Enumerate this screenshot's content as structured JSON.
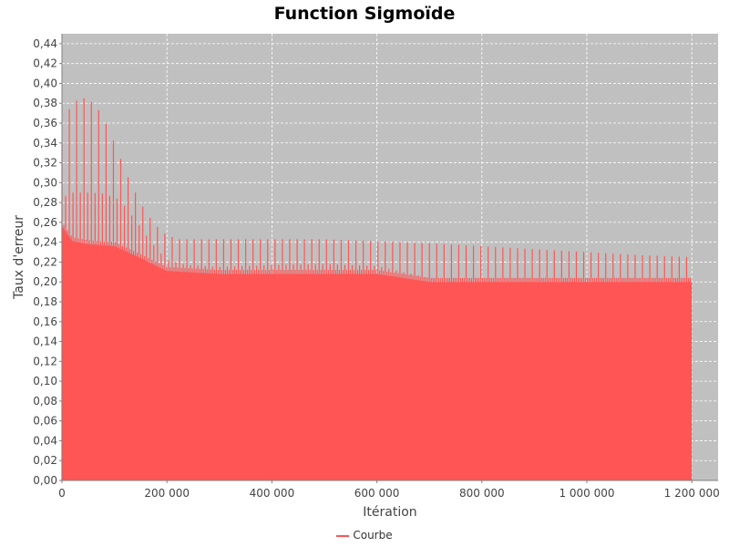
{
  "chart_data": {
    "type": "line",
    "title": "Function Sigmoïde",
    "xlabel": "Itération",
    "ylabel": "Taux d'erreur",
    "xlim": [
      0,
      1250000
    ],
    "ylim": [
      0,
      0.45
    ],
    "x_ticks": [
      "0",
      "200 000",
      "400 000",
      "600 000",
      "800 000",
      "1 000 000",
      "1 200 000"
    ],
    "x_tick_values": [
      0,
      200000,
      400000,
      600000,
      800000,
      1000000,
      1200000
    ],
    "y_ticks": [
      "0,00",
      "0,02",
      "0,04",
      "0,06",
      "0,08",
      "0,10",
      "0,12",
      "0,14",
      "0,16",
      "0,18",
      "0,20",
      "0,22",
      "0,24",
      "0,26",
      "0,28",
      "0,30",
      "0,32",
      "0,34",
      "0,36",
      "0,38",
      "0,40",
      "0,42",
      "0,44"
    ],
    "y_tick_values": [
      0,
      0.02,
      0.04,
      0.06,
      0.08,
      0.1,
      0.12,
      0.14,
      0.16,
      0.18,
      0.2,
      0.22,
      0.24,
      0.26,
      0.28,
      0.3,
      0.32,
      0.34,
      0.36,
      0.38,
      0.4,
      0.42,
      0.44
    ],
    "grid": true,
    "plot_background": "#c0c0c0",
    "legend_position": "bottom",
    "series": [
      {
        "name": "Courbe",
        "color": "#ff5555",
        "x_max": 1200000,
        "oscillation_low": 0.0,
        "envelope_upper": {
          "x": [
            0,
            10000,
            20000,
            35000,
            50000,
            75000,
            100000,
            130000,
            160000,
            190000,
            220000,
            260000,
            400000,
            500000,
            600000,
            700000,
            800000,
            900000,
            1000000,
            1100000,
            1200000
          ],
          "y": [
            0.34,
            0.37,
            0.38,
            0.385,
            0.385,
            0.37,
            0.34,
            0.3,
            0.27,
            0.25,
            0.243,
            0.243,
            0.243,
            0.243,
            0.241,
            0.239,
            0.236,
            0.233,
            0.23,
            0.227,
            0.225
          ]
        },
        "envelope_middle": {
          "x": [
            0,
            20000,
            50000,
            80000,
            110000,
            140000,
            170000,
            200000,
            240000,
            300000,
            400000,
            500000,
            600000,
            650000,
            700000,
            800000,
            1000000,
            1200000
          ],
          "y": [
            0.285,
            0.29,
            0.29,
            0.289,
            0.283,
            0.262,
            0.24,
            0.222,
            0.217,
            0.215,
            0.217,
            0.218,
            0.216,
            0.21,
            0.204,
            0.204,
            0.204,
            0.204
          ]
        },
        "envelope_lower": {
          "x": [
            0,
            20000,
            50000,
            100000,
            150000,
            200000,
            300000,
            600000,
            700000,
            1200000
          ],
          "y": [
            0.26,
            0.245,
            0.242,
            0.24,
            0.228,
            0.215,
            0.212,
            0.212,
            0.204,
            0.204
          ]
        }
      }
    ]
  }
}
